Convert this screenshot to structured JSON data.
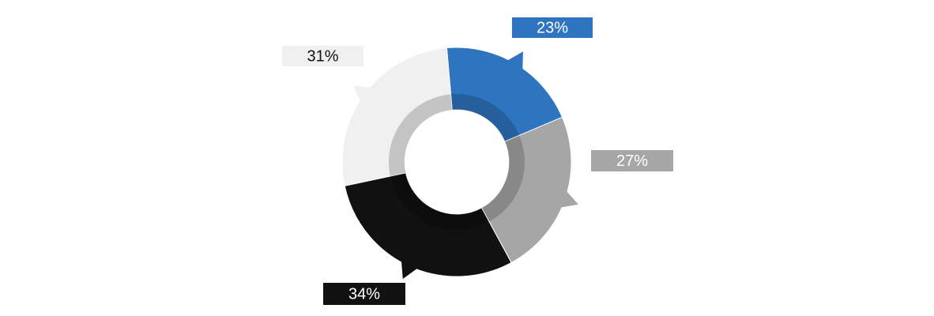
{
  "chart_data": {
    "type": "donut",
    "values": [
      23,
      27,
      34,
      31
    ],
    "value_labels": [
      "23%",
      "27%",
      "34%",
      "31%"
    ],
    "colors": [
      "#2e74bf",
      "#a6a6a6",
      "#111111",
      "#f0f0f0"
    ],
    "label_text_colors": [
      "#ffffff",
      "#ffffff",
      "#ffffff",
      "#111111"
    ]
  }
}
